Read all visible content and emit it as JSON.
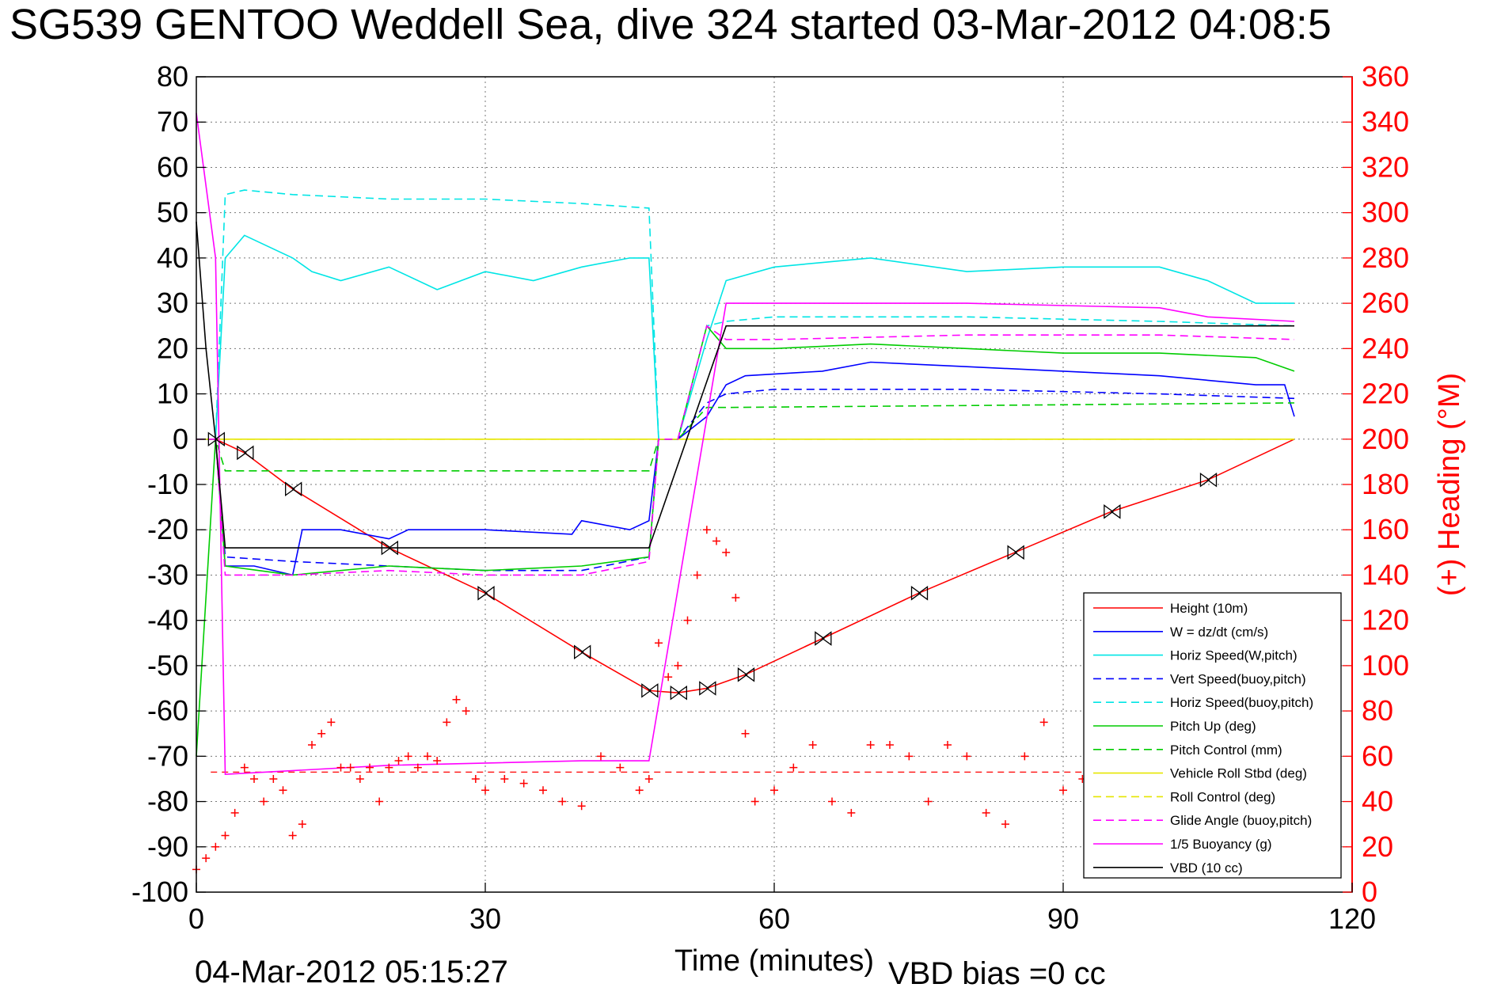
{
  "chart_data": {
    "type": "line",
    "title": "SG539 GENTOO Weddell Sea, dive 324 started 03-Mar-2012 04:08:5",
    "xlabel": "Time (minutes)",
    "ylabel": "",
    "ylabel_right": "(+) Heading (°M)",
    "xlim": [
      0,
      120
    ],
    "ylim": [
      -100,
      80
    ],
    "ylim_right": [
      0,
      360
    ],
    "xticks": [
      0,
      30,
      60,
      90,
      120
    ],
    "yticks": [
      80,
      70,
      60,
      50,
      40,
      30,
      20,
      10,
      0,
      -10,
      -20,
      -30,
      -40,
      -50,
      -60,
      -70,
      -80,
      -90,
      -100
    ],
    "yticks_right": [
      360,
      340,
      320,
      300,
      280,
      260,
      240,
      220,
      200,
      180,
      160,
      140,
      120,
      100,
      80,
      60,
      40,
      20,
      0
    ],
    "grid": true,
    "legend_position": "bottom-right",
    "series": [
      {
        "name": "Height (10m)",
        "color": "#ff0000",
        "dash": "solid",
        "x": [
          0,
          2,
          5,
          10,
          20,
          30,
          40,
          47,
          50,
          53,
          57,
          65,
          75,
          85,
          95,
          105,
          114
        ],
        "y": [
          0,
          0,
          -3,
          -11,
          -24,
          -34,
          -47,
          -55.5,
          -56,
          -55,
          -52,
          -44,
          -34,
          -25,
          -16,
          -9,
          0
        ]
      },
      {
        "name": "W = dz/dt (cm/s)",
        "color": "#0000ff",
        "dash": "solid",
        "x": [
          0,
          2,
          3,
          6,
          10,
          11,
          15,
          20,
          22,
          25,
          30,
          39,
          40,
          45,
          47,
          48,
          50,
          53,
          55,
          57,
          65,
          70,
          80,
          90,
          100,
          105,
          110,
          113,
          114
        ],
        "y": [
          0,
          0,
          -28,
          -28,
          -30,
          -20,
          -20,
          -22,
          -20,
          -20,
          -20,
          -21,
          -18,
          -20,
          -18,
          0,
          0,
          5,
          12,
          14,
          15,
          17,
          16,
          15,
          14,
          13,
          12,
          12,
          5
        ]
      },
      {
        "name": "Horiz Speed(W,pitch)",
        "color": "#00e5e5",
        "dash": "solid",
        "x": [
          0,
          2,
          3,
          5,
          10,
          12,
          15,
          20,
          25,
          30,
          35,
          40,
          45,
          47,
          48,
          50,
          53,
          55,
          60,
          70,
          80,
          90,
          100,
          105,
          110,
          114
        ],
        "y": [
          0,
          0,
          40,
          45,
          40,
          37,
          35,
          38,
          33,
          37,
          35,
          38,
          40,
          40,
          0,
          0,
          22,
          35,
          38,
          40,
          37,
          38,
          38,
          35,
          30,
          30
        ]
      },
      {
        "name": "Vert Speed(buoy,pitch)",
        "color": "#0000ff",
        "dash": "dashed",
        "x": [
          0,
          2,
          3,
          10,
          20,
          30,
          40,
          47,
          48,
          50,
          53,
          55,
          60,
          80,
          100,
          114
        ],
        "y": [
          0,
          0,
          -26,
          -27,
          -28,
          -29,
          -29,
          -26,
          0,
          0,
          8,
          10,
          11,
          11,
          10,
          9
        ]
      },
      {
        "name": "Horiz Speed(buoy,pitch)",
        "color": "#00e5e5",
        "dash": "dashed",
        "x": [
          0,
          2,
          3,
          5,
          10,
          20,
          30,
          40,
          47,
          48,
          50,
          53,
          55,
          60,
          80,
          100,
          114
        ],
        "y": [
          0,
          0,
          54,
          55,
          54,
          53,
          53,
          52,
          51,
          0,
          0,
          25,
          26,
          27,
          27,
          26,
          25
        ]
      },
      {
        "name": "Pitch Up (deg)",
        "color": "#00cc00",
        "dash": "solid",
        "x": [
          0,
          2,
          3,
          10,
          20,
          30,
          40,
          47,
          48,
          50,
          53,
          55,
          60,
          70,
          80,
          90,
          100,
          110,
          114
        ],
        "y": [
          -70,
          0,
          -28,
          -30,
          -28,
          -29,
          -28,
          -26,
          0,
          0,
          25,
          20,
          20,
          21,
          20,
          19,
          19,
          18,
          15
        ]
      },
      {
        "name": "Pitch Control (mm)",
        "color": "#00cc00",
        "dash": "dashed",
        "x": [
          0,
          2,
          3,
          47,
          48,
          50,
          53,
          55,
          114
        ],
        "y": [
          0,
          0,
          -7,
          -7,
          0,
          0,
          7,
          7,
          8
        ]
      },
      {
        "name": "Vehicle Roll Stbd (deg)",
        "color": "#e6e600",
        "dash": "solid",
        "x": [
          0,
          5,
          10,
          20,
          30,
          40,
          47,
          50,
          55,
          60,
          70,
          80,
          90,
          100,
          114
        ],
        "y": [
          0,
          0,
          0,
          0,
          0,
          0,
          0,
          0,
          0,
          0,
          0,
          0,
          0,
          0,
          0
        ]
      },
      {
        "name": "Roll Control (deg)",
        "color": "#e6e600",
        "dash": "dashed",
        "x": [
          0,
          114
        ],
        "y": [
          0,
          0
        ]
      },
      {
        "name": "Glide Angle (buoy,pitch)",
        "color": "#ff00ff",
        "dash": "dashed",
        "x": [
          0,
          2,
          3,
          10,
          20,
          30,
          40,
          47,
          48,
          50,
          53,
          55,
          60,
          80,
          100,
          114
        ],
        "y": [
          0,
          0,
          -30,
          -30,
          -29,
          -30,
          -30,
          -27,
          0,
          0,
          25,
          22,
          22,
          23,
          23,
          22
        ]
      },
      {
        "name": "1/5 Buoyancy (g)",
        "color": "#ff00ff",
        "dash": "solid",
        "x": [
          0,
          2,
          3,
          20,
          40,
          47,
          55,
          60,
          80,
          100,
          105,
          114
        ],
        "y": [
          72,
          40,
          -74,
          -72,
          -71,
          -71,
          30,
          30,
          30,
          29,
          27,
          26
        ]
      },
      {
        "name": "VBD (10 cc)",
        "color": "#000000",
        "dash": "solid",
        "x": [
          0,
          1,
          2,
          3,
          40,
          47,
          55,
          60,
          80,
          100,
          114
        ],
        "y": [
          48,
          20,
          0,
          -24,
          -24,
          -24,
          25,
          25,
          25,
          25,
          25
        ]
      }
    ],
    "heading_series": {
      "name": "(+) Heading",
      "color": "#ff0000",
      "marker": "+",
      "x": [
        0,
        1,
        2,
        3,
        4,
        5,
        6,
        7,
        8,
        9,
        10,
        11,
        12,
        13,
        14,
        15,
        16,
        17,
        18,
        19,
        20,
        21,
        22,
        23,
        24,
        25,
        26,
        27,
        28,
        29,
        30,
        32,
        34,
        36,
        38,
        40,
        42,
        44,
        46,
        47,
        48,
        49,
        50,
        51,
        52,
        53,
        54,
        55,
        56,
        57,
        58,
        60,
        62,
        64,
        66,
        68,
        70,
        72,
        74,
        76,
        78,
        80,
        82,
        84,
        86,
        88,
        90,
        92,
        94
      ],
      "y": [
        10,
        15,
        20,
        25,
        35,
        55,
        50,
        40,
        50,
        45,
        25,
        30,
        65,
        70,
        75,
        55,
        55,
        50,
        55,
        40,
        55,
        58,
        60,
        55,
        60,
        58,
        75,
        85,
        80,
        50,
        45,
        50,
        48,
        45,
        40,
        38,
        60,
        55,
        45,
        50,
        110,
        95,
        100,
        120,
        140,
        160,
        155,
        150,
        130,
        70,
        40,
        45,
        55,
        65,
        40,
        35,
        65,
        65,
        60,
        40,
        65,
        60,
        35,
        30,
        60,
        75,
        45,
        50,
        55
      ]
    },
    "heading_reference": 53
  },
  "footer": {
    "timestamp": "04-Mar-2012 05:15:27",
    "vbd_bias": "VBD bias =0 cc"
  }
}
